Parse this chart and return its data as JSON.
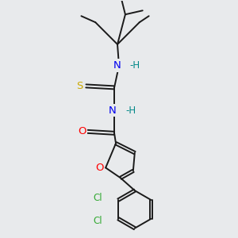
{
  "background_color": "#e8eaec",
  "bond_color": "#1a1a1a",
  "atom_colors": {
    "N": "#0000ee",
    "O": "#ff0000",
    "S": "#ccaa00",
    "Cl": "#33aa33",
    "H": "#008888",
    "C": "#1a1a1a"
  },
  "font_size": 8.5,
  "figsize": [
    3.0,
    3.0
  ],
  "dpi": 100
}
